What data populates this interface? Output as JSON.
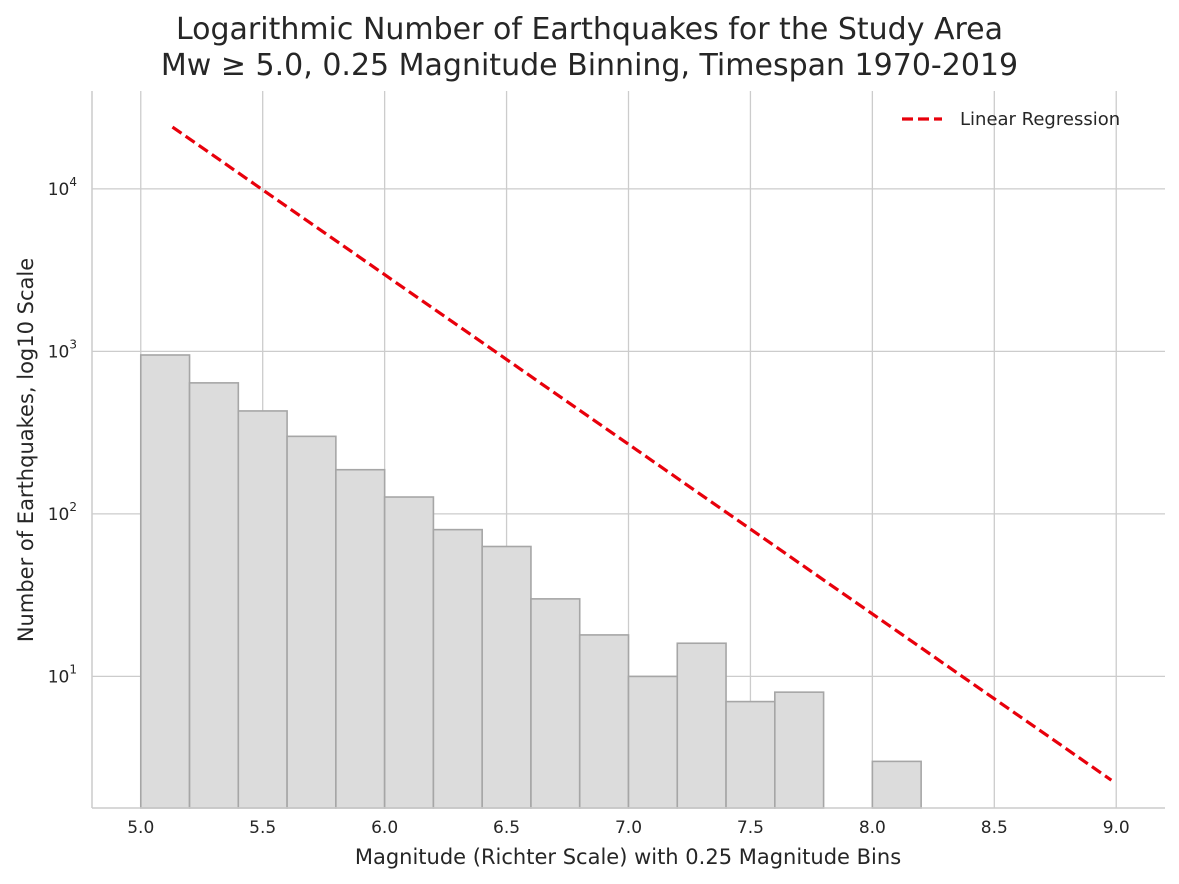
{
  "chart_data": {
    "type": "bar",
    "title": "Logarithmic Number of Earthquakes for the Study Area",
    "subtitle": "Mw ≥ 5.0, 0.25 Magnitude Binning, Timespan 1970-2019",
    "xlabel": "Magnitude (Richter Scale) with 0.25 Magnitude Bins",
    "ylabel": "Number of Earthquakes, log10 Scale",
    "xlim": [
      4.8,
      9.2
    ],
    "ylim": [
      1.55,
      40000
    ],
    "yscale": "log",
    "grid": true,
    "legend_position": "top-right",
    "x_ticks": [
      5.0,
      5.5,
      6.0,
      6.5,
      7.0,
      7.5,
      8.0,
      8.5,
      9.0
    ],
    "x_tick_labels": [
      "5.0",
      "5.5",
      "6.0",
      "6.5",
      "7.0",
      "7.5",
      "8.0",
      "8.5",
      "9.0"
    ],
    "y_ticks": [
      10,
      100,
      1000,
      10000
    ],
    "y_tick_labels": [
      {
        "base": "10",
        "exp": "1"
      },
      {
        "base": "10",
        "exp": "2"
      },
      {
        "base": "10",
        "exp": "3"
      },
      {
        "base": "10",
        "exp": "4"
      }
    ],
    "bins": [
      {
        "start": 5.0,
        "end": 5.2,
        "count": 950
      },
      {
        "start": 5.2,
        "end": 5.4,
        "count": 640
      },
      {
        "start": 5.4,
        "end": 5.6,
        "count": 430
      },
      {
        "start": 5.6,
        "end": 5.8,
        "count": 300
      },
      {
        "start": 5.8,
        "end": 6.0,
        "count": 187
      },
      {
        "start": 6.0,
        "end": 6.2,
        "count": 127
      },
      {
        "start": 6.2,
        "end": 6.4,
        "count": 80
      },
      {
        "start": 6.4,
        "end": 6.6,
        "count": 63
      },
      {
        "start": 6.6,
        "end": 6.8,
        "count": 30
      },
      {
        "start": 6.8,
        "end": 7.0,
        "count": 18
      },
      {
        "start": 7.0,
        "end": 7.2,
        "count": 10
      },
      {
        "start": 7.2,
        "end": 7.4,
        "count": 16
      },
      {
        "start": 7.4,
        "end": 7.6,
        "count": 7
      },
      {
        "start": 7.6,
        "end": 7.8,
        "count": 8
      },
      {
        "start": 8.0,
        "end": 8.2,
        "count": 3
      }
    ],
    "series": [
      {
        "name": "Linear Regression",
        "type": "line",
        "style": "dashed",
        "x": [
          5.13,
          8.98
        ],
        "y": [
          24000,
          2.3
        ]
      }
    ],
    "colors": {
      "bar_fill": "#dcdcdc",
      "bar_edge": "#a6a6a6",
      "regression": "#e8000b",
      "grid": "#cccccc",
      "axis": "#cccccc"
    }
  }
}
